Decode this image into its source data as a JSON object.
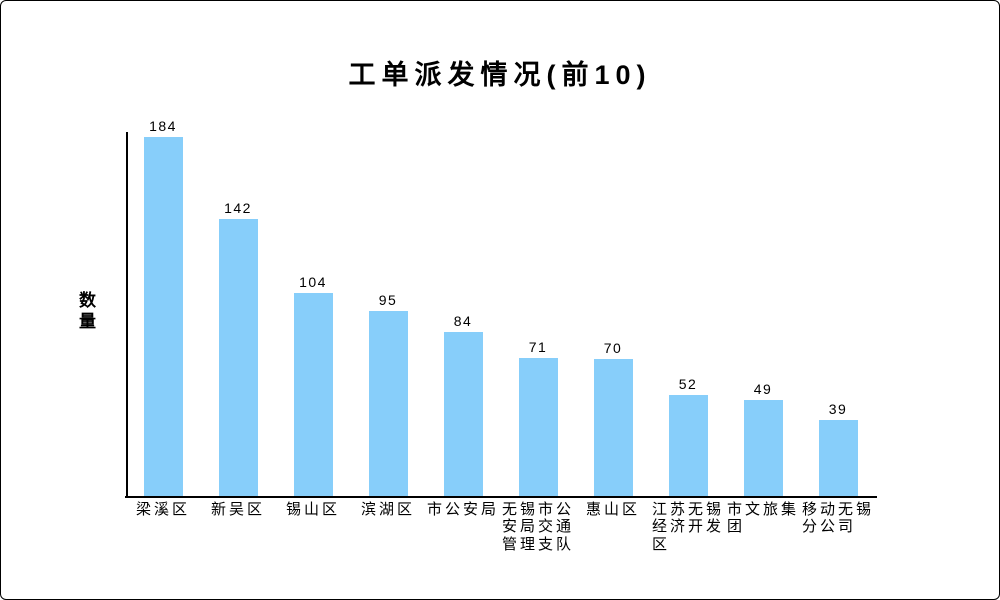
{
  "window": {
    "background_color": "#ffffff",
    "border_color": "#000000"
  },
  "chart_data": {
    "type": "bar",
    "title": "工单派发情况(前10)",
    "xlabel": "",
    "ylabel": "数量",
    "categories": [
      "梁溪区",
      "新吴区",
      "锡山区",
      "滨湖区",
      "市公安局",
      "无锡市公安局交通管理支队",
      "惠山区",
      "江苏无锡经济开发区",
      "市文旅集团",
      "移动无锡分公司"
    ],
    "tick_labels": [
      "梁溪区",
      "新吴区",
      "锡山区",
      "滨湖区",
      "市公安局",
      "无锡市公\n安局交通\n管理支队",
      "惠山区",
      "江苏无锡\n经济开发\n区",
      "市文旅集\n团",
      "移动无锡\n分公司"
    ],
    "values": [
      184,
      142,
      104,
      95,
      84,
      71,
      70,
      52,
      49,
      39
    ],
    "bar_color": "#87CEFA",
    "axis_color": "#000000",
    "text_color": "#000000",
    "ylim": [
      0,
      186
    ],
    "grid": false,
    "legend": false,
    "value_labels_shown": true
  }
}
